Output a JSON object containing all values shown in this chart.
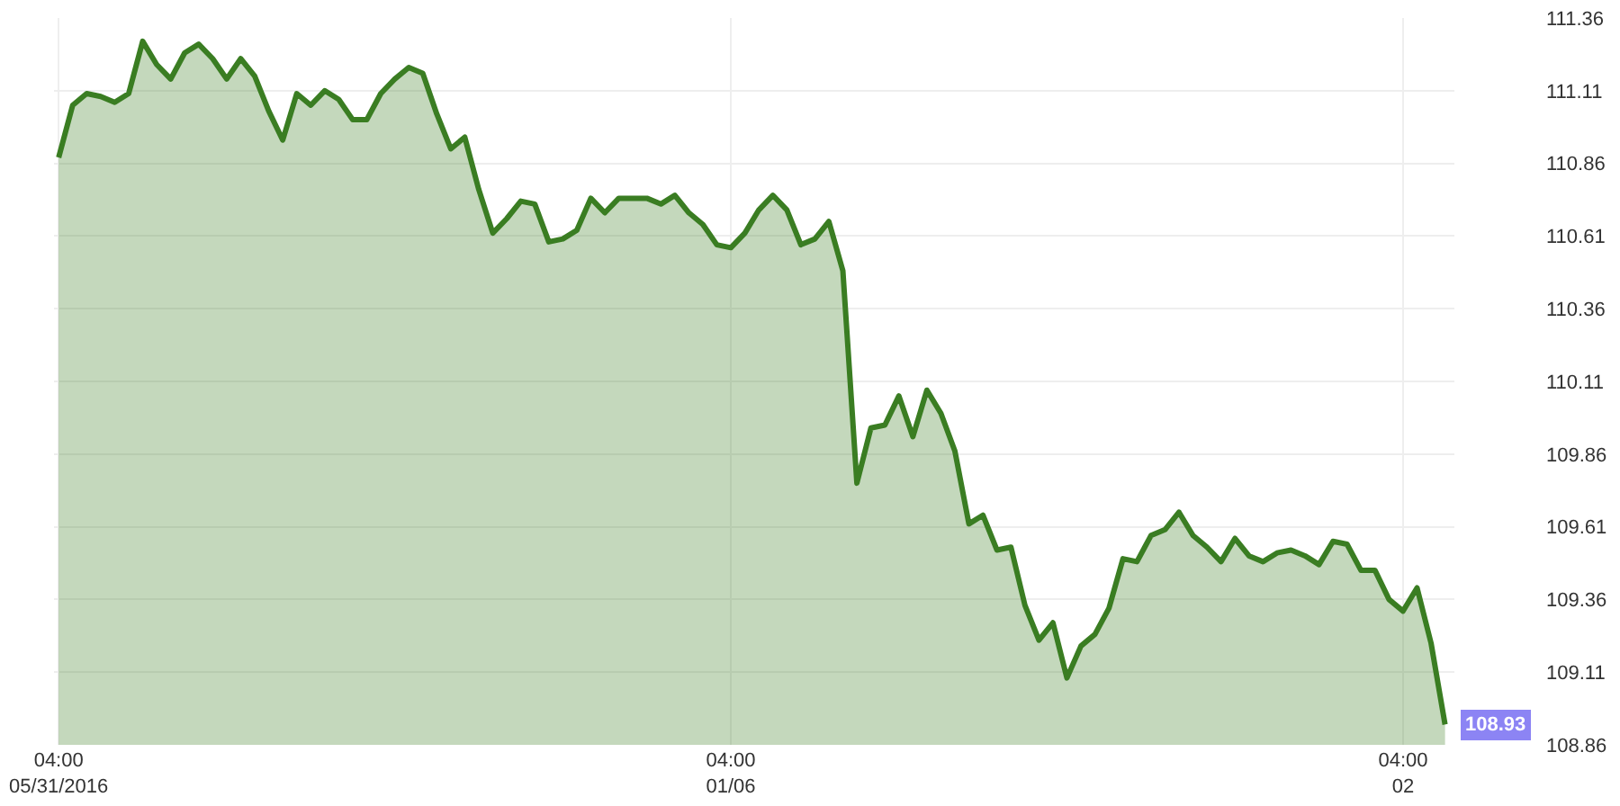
{
  "chart_data": {
    "type": "area",
    "x": [
      "2016-05-31T04:00",
      "2016-05-31T04:30",
      "2016-05-31T05:00",
      "2016-05-31T05:30",
      "2016-05-31T06:00",
      "2016-05-31T06:30",
      "2016-05-31T07:00",
      "2016-05-31T07:30",
      "2016-05-31T08:00",
      "2016-05-31T08:30",
      "2016-05-31T09:00",
      "2016-05-31T09:30",
      "2016-05-31T10:00",
      "2016-05-31T10:30",
      "2016-05-31T11:00",
      "2016-05-31T11:30",
      "2016-05-31T12:00",
      "2016-05-31T12:30",
      "2016-05-31T13:00",
      "2016-05-31T13:30",
      "2016-05-31T14:00",
      "2016-05-31T14:30",
      "2016-05-31T15:00",
      "2016-05-31T15:30",
      "2016-05-31T16:00",
      "2016-05-31T16:30",
      "2016-05-31T17:00",
      "2016-05-31T17:30",
      "2016-05-31T18:00",
      "2016-05-31T18:30",
      "2016-05-31T19:00",
      "2016-05-31T19:30",
      "2016-05-31T20:00",
      "2016-05-31T20:30",
      "2016-05-31T21:00",
      "2016-05-31T21:30",
      "2016-05-31T22:00",
      "2016-05-31T22:30",
      "2016-05-31T23:00",
      "2016-05-31T23:30",
      "2016-06-01T00:00",
      "2016-06-01T00:30",
      "2016-06-01T01:00",
      "2016-06-01T01:30",
      "2016-06-01T02:00",
      "2016-06-01T02:30",
      "2016-06-01T03:00",
      "2016-06-01T03:30",
      "2016-06-01T04:00",
      "2016-06-01T04:30",
      "2016-06-01T05:00",
      "2016-06-01T05:30",
      "2016-06-01T06:00",
      "2016-06-01T06:30",
      "2016-06-01T07:00",
      "2016-06-01T07:30",
      "2016-06-01T08:00",
      "2016-06-01T08:30",
      "2016-06-01T09:00",
      "2016-06-01T09:30",
      "2016-06-01T10:00",
      "2016-06-01T10:30",
      "2016-06-01T11:00",
      "2016-06-01T11:30",
      "2016-06-01T12:00",
      "2016-06-01T12:30",
      "2016-06-01T13:00",
      "2016-06-01T13:30",
      "2016-06-01T14:00",
      "2016-06-01T14:30",
      "2016-06-01T15:00",
      "2016-06-01T15:30",
      "2016-06-01T16:00",
      "2016-06-01T16:30",
      "2016-06-01T17:00",
      "2016-06-01T17:30",
      "2016-06-01T18:00",
      "2016-06-01T18:30",
      "2016-06-01T19:00",
      "2016-06-01T19:30",
      "2016-06-01T20:00",
      "2016-06-01T20:30",
      "2016-06-01T21:00",
      "2016-06-01T21:30",
      "2016-06-01T22:00",
      "2016-06-01T22:30",
      "2016-06-01T23:00",
      "2016-06-01T23:30",
      "2016-06-02T00:00",
      "2016-06-02T00:30",
      "2016-06-02T01:00",
      "2016-06-02T01:30",
      "2016-06-02T02:00",
      "2016-06-02T02:30",
      "2016-06-02T03:00",
      "2016-06-02T03:30",
      "2016-06-02T04:00",
      "2016-06-02T04:30",
      "2016-06-02T05:00",
      "2016-06-02T05:30"
    ],
    "series": [
      {
        "color": "#3a7d22",
        "values": [
          110.88,
          111.06,
          111.1,
          111.09,
          111.07,
          111.1,
          111.28,
          111.2,
          111.15,
          111.24,
          111.27,
          111.22,
          111.15,
          111.22,
          111.16,
          111.04,
          110.94,
          111.1,
          111.06,
          111.11,
          111.08,
          111.01,
          111.01,
          111.1,
          111.15,
          111.19,
          111.17,
          111.03,
          110.91,
          110.95,
          110.77,
          110.62,
          110.67,
          110.73,
          110.72,
          110.59,
          110.6,
          110.63,
          110.74,
          110.69,
          110.74,
          110.74,
          110.74,
          110.72,
          110.75,
          110.69,
          110.65,
          110.58,
          110.57,
          110.62,
          110.7,
          110.75,
          110.7,
          110.58,
          110.6,
          110.66,
          110.49,
          109.76,
          109.95,
          109.96,
          110.06,
          109.92,
          110.08,
          110.0,
          109.87,
          109.62,
          109.65,
          109.53,
          109.54,
          109.34,
          109.22,
          109.28,
          109.09,
          109.2,
          109.24,
          109.33,
          109.5,
          109.49,
          109.58,
          109.6,
          109.66,
          109.58,
          109.54,
          109.49,
          109.57,
          109.51,
          109.49,
          109.52,
          109.53,
          109.51,
          109.48,
          109.56,
          109.55,
          109.46,
          109.46,
          109.36,
          109.32,
          109.4,
          109.21,
          108.93
        ]
      }
    ],
    "xlim": [
      "2016-05-31T03:50",
      "2016-06-02T05:50"
    ],
    "xticks": [
      {
        "value": "2016-05-31T04:00",
        "label": "04:00\n05/31/2016"
      },
      {
        "value": "2016-06-01T04:00",
        "label": "04:00\n01/06"
      },
      {
        "value": "2016-06-02T04:00",
        "label": "04:00\n02"
      }
    ],
    "ylim": [
      108.86,
      111.36
    ],
    "yticks": [
      108.86,
      109.11,
      109.36,
      109.61,
      109.86,
      110.11,
      110.36,
      110.61,
      110.86,
      111.11,
      111.36
    ],
    "grid": true,
    "annotations": [
      {
        "text": "108.93",
        "x": "2016-06-02T05:30",
        "y": 108.93
      }
    ]
  }
}
